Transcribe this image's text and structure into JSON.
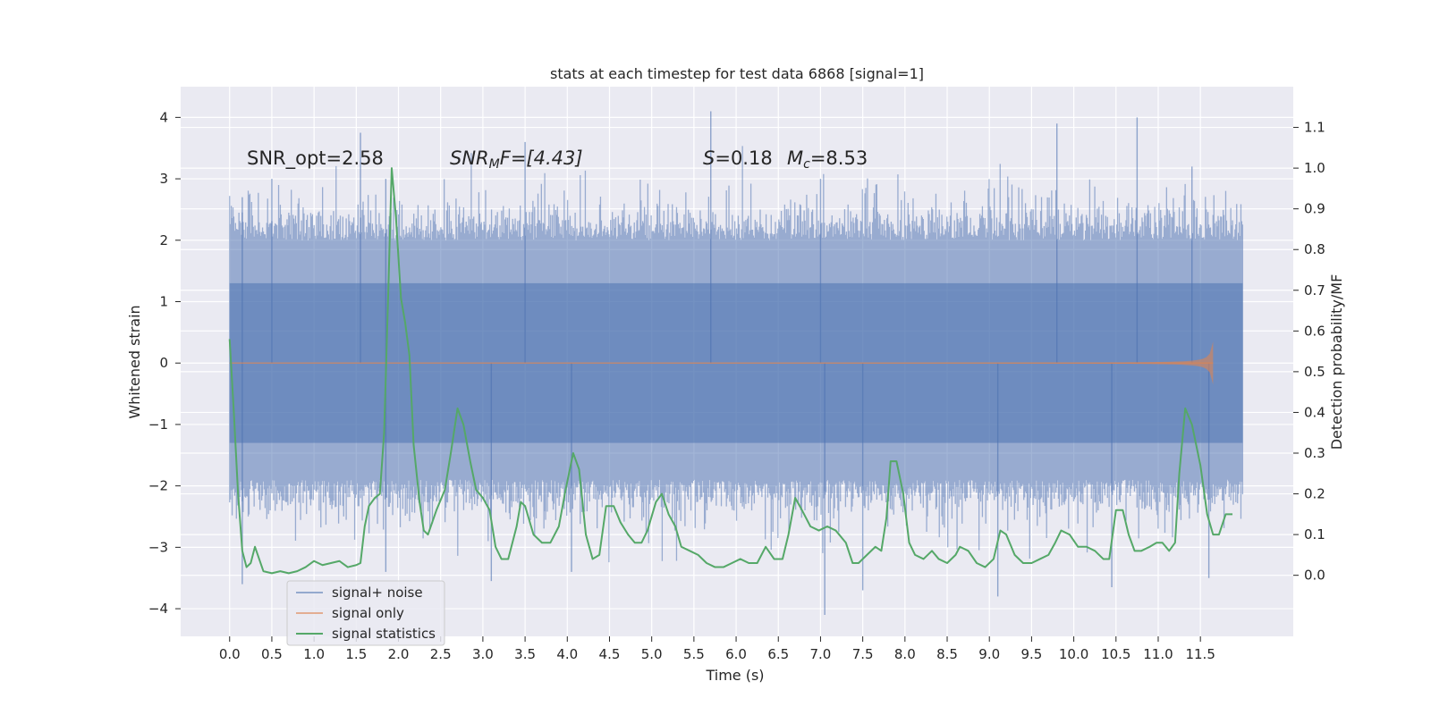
{
  "chart_data": {
    "type": "line",
    "title": "stats at each timestep for test data 6868 [signal=1]",
    "xlabel": "Time (s)",
    "ylabel_left": "Whitened strain",
    "ylabel_right": "Detection probability/MF",
    "xlim": [
      -0.58,
      12.6
    ],
    "ylim_left": [
      -4.45,
      4.5
    ],
    "ylim_right": [
      -0.15,
      1.2
    ],
    "x_ticks": [
      0.0,
      0.5,
      1.0,
      1.5,
      2.0,
      2.5,
      3.0,
      3.5,
      4.0,
      4.5,
      5.0,
      5.5,
      6.0,
      6.5,
      7.0,
      7.5,
      8.0,
      8.5,
      9.0,
      9.5,
      10.0,
      10.5,
      11.0,
      11.5
    ],
    "x_tick_labels": [
      "0.0",
      "0.5",
      "1.0",
      "1.5",
      "2.0",
      "2.5",
      "3.0",
      "3.5",
      "4.0",
      "4.5",
      "5.0",
      "5.5",
      "6.0",
      "6.5",
      "7.0",
      "7.5",
      "8.0",
      "8.5",
      "9.0",
      "9.5",
      "10.0",
      "10.5",
      "11.0",
      "11.5"
    ],
    "y_ticks_left": [
      4,
      3,
      2,
      1,
      0,
      -1,
      -2,
      -3,
      -4
    ],
    "y_tick_labels_left": [
      "4",
      "3",
      "2",
      "1",
      "0",
      "−1",
      "−2",
      "−3",
      "−4"
    ],
    "y_ticks_right": [
      1.1,
      1.0,
      0.9,
      0.8,
      0.7,
      0.6,
      0.5,
      0.4,
      0.3,
      0.2,
      0.1,
      0.0
    ],
    "y_tick_labels_right": [
      "1.1",
      "1.0",
      "0.9",
      "0.8",
      "0.7",
      "0.6",
      "0.5",
      "0.4",
      "0.3",
      "0.2",
      "0.1",
      "0.0"
    ],
    "annotations": {
      "snr_opt": "SNR_opt=2.58",
      "snr_mf_sym": "SNR",
      "snr_mf_sub": "M",
      "snr_mf_rest": "F=[4.43]",
      "s_sym": "S",
      "s_value": "=0.18",
      "mc_sym": "M",
      "mc_sub": "c",
      "mc_value": "=8.53"
    },
    "legend": {
      "placement": "lower-left",
      "entries": [
        "signal+ noise",
        "signal only",
        "signal statistics"
      ]
    },
    "series": [
      {
        "name": "signal+ noise",
        "color": "#4c72b0",
        "style": "dense noise band",
        "x_range": [
          0.0,
          12.0
        ],
        "band_core": [
          -1.9,
          2.0
        ],
        "extremes": [
          [
            0.15,
            2.7
          ],
          [
            0.5,
            3.0
          ],
          [
            1.55,
            3.75
          ],
          [
            1.85,
            3.0
          ],
          [
            3.5,
            3.6
          ],
          [
            5.7,
            4.1
          ],
          [
            7.0,
            3.0
          ],
          [
            9.8,
            3.9
          ],
          [
            10.75,
            4.0
          ],
          [
            11.4,
            3.2
          ],
          [
            0.15,
            -3.6
          ],
          [
            1.85,
            -3.4
          ],
          [
            3.1,
            -3.55
          ],
          [
            4.05,
            -3.4
          ],
          [
            7.05,
            -4.1
          ],
          [
            7.5,
            -3.7
          ],
          [
            9.1,
            -3.8
          ],
          [
            10.45,
            -3.65
          ],
          [
            11.6,
            -3.5
          ]
        ]
      },
      {
        "name": "signal only",
        "color": "#dd8452",
        "style": "chirp",
        "x_range": [
          0.0,
          11.65
        ],
        "peak_time": 11.65,
        "peak_amplitude": 0.35
      },
      {
        "name": "signal statistics",
        "color": "#55a868",
        "axis": "right",
        "points": [
          [
            0.0,
            0.58
          ],
          [
            0.05,
            0.4
          ],
          [
            0.1,
            0.2
          ],
          [
            0.15,
            0.06
          ],
          [
            0.2,
            0.02
          ],
          [
            0.25,
            0.03
          ],
          [
            0.3,
            0.07
          ],
          [
            0.35,
            0.04
          ],
          [
            0.4,
            0.01
          ],
          [
            0.5,
            0.005
          ],
          [
            0.6,
            0.01
          ],
          [
            0.7,
            0.005
          ],
          [
            0.8,
            0.01
          ],
          [
            0.9,
            0.02
          ],
          [
            1.0,
            0.035
          ],
          [
            1.1,
            0.025
          ],
          [
            1.2,
            0.03
          ],
          [
            1.3,
            0.035
          ],
          [
            1.4,
            0.02
          ],
          [
            1.5,
            0.025
          ],
          [
            1.55,
            0.03
          ],
          [
            1.6,
            0.12
          ],
          [
            1.65,
            0.17
          ],
          [
            1.72,
            0.19
          ],
          [
            1.78,
            0.2
          ],
          [
            1.83,
            0.35
          ],
          [
            1.88,
            0.7
          ],
          [
            1.92,
            1.0
          ],
          [
            1.97,
            0.88
          ],
          [
            2.03,
            0.68
          ],
          [
            2.08,
            0.62
          ],
          [
            2.13,
            0.54
          ],
          [
            2.18,
            0.32
          ],
          [
            2.25,
            0.18
          ],
          [
            2.3,
            0.11
          ],
          [
            2.35,
            0.1
          ],
          [
            2.45,
            0.16
          ],
          [
            2.55,
            0.21
          ],
          [
            2.62,
            0.3
          ],
          [
            2.7,
            0.41
          ],
          [
            2.77,
            0.37
          ],
          [
            2.85,
            0.28
          ],
          [
            2.92,
            0.21
          ],
          [
            3.0,
            0.19
          ],
          [
            3.08,
            0.16
          ],
          [
            3.15,
            0.07
          ],
          [
            3.22,
            0.04
          ],
          [
            3.3,
            0.04
          ],
          [
            3.4,
            0.12
          ],
          [
            3.45,
            0.18
          ],
          [
            3.5,
            0.17
          ],
          [
            3.6,
            0.1
          ],
          [
            3.7,
            0.08
          ],
          [
            3.8,
            0.08
          ],
          [
            3.9,
            0.12
          ],
          [
            3.98,
            0.21
          ],
          [
            4.07,
            0.3
          ],
          [
            4.14,
            0.26
          ],
          [
            4.22,
            0.1
          ],
          [
            4.3,
            0.04
          ],
          [
            4.38,
            0.05
          ],
          [
            4.46,
            0.17
          ],
          [
            4.55,
            0.17
          ],
          [
            4.63,
            0.13
          ],
          [
            4.72,
            0.1
          ],
          [
            4.8,
            0.08
          ],
          [
            4.88,
            0.08
          ],
          [
            4.95,
            0.11
          ],
          [
            5.05,
            0.18
          ],
          [
            5.12,
            0.2
          ],
          [
            5.2,
            0.15
          ],
          [
            5.28,
            0.12
          ],
          [
            5.35,
            0.07
          ],
          [
            5.45,
            0.06
          ],
          [
            5.55,
            0.05
          ],
          [
            5.65,
            0.03
          ],
          [
            5.75,
            0.02
          ],
          [
            5.85,
            0.02
          ],
          [
            5.95,
            0.03
          ],
          [
            6.05,
            0.04
          ],
          [
            6.15,
            0.03
          ],
          [
            6.25,
            0.03
          ],
          [
            6.35,
            0.07
          ],
          [
            6.45,
            0.04
          ],
          [
            6.55,
            0.04
          ],
          [
            6.62,
            0.1
          ],
          [
            6.7,
            0.19
          ],
          [
            6.78,
            0.16
          ],
          [
            6.88,
            0.12
          ],
          [
            6.98,
            0.11
          ],
          [
            7.08,
            0.12
          ],
          [
            7.18,
            0.11
          ],
          [
            7.3,
            0.08
          ],
          [
            7.38,
            0.03
          ],
          [
            7.45,
            0.03
          ],
          [
            7.55,
            0.05
          ],
          [
            7.65,
            0.07
          ],
          [
            7.72,
            0.06
          ],
          [
            7.78,
            0.14
          ],
          [
            7.83,
            0.28
          ],
          [
            7.9,
            0.28
          ],
          [
            7.98,
            0.2
          ],
          [
            8.05,
            0.08
          ],
          [
            8.12,
            0.05
          ],
          [
            8.22,
            0.04
          ],
          [
            8.32,
            0.06
          ],
          [
            8.4,
            0.04
          ],
          [
            8.5,
            0.03
          ],
          [
            8.6,
            0.05
          ],
          [
            8.65,
            0.07
          ],
          [
            8.75,
            0.06
          ],
          [
            8.85,
            0.03
          ],
          [
            8.95,
            0.02
          ],
          [
            9.05,
            0.04
          ],
          [
            9.13,
            0.11
          ],
          [
            9.2,
            0.1
          ],
          [
            9.3,
            0.05
          ],
          [
            9.4,
            0.03
          ],
          [
            9.5,
            0.03
          ],
          [
            9.6,
            0.04
          ],
          [
            9.7,
            0.05
          ],
          [
            9.78,
            0.08
          ],
          [
            9.85,
            0.11
          ],
          [
            9.95,
            0.1
          ],
          [
            10.05,
            0.07
          ],
          [
            10.15,
            0.07
          ],
          [
            10.25,
            0.06
          ],
          [
            10.35,
            0.04
          ],
          [
            10.42,
            0.04
          ],
          [
            10.5,
            0.16
          ],
          [
            10.58,
            0.16
          ],
          [
            10.65,
            0.1
          ],
          [
            10.72,
            0.06
          ],
          [
            10.8,
            0.06
          ],
          [
            10.9,
            0.07
          ],
          [
            10.98,
            0.08
          ],
          [
            11.05,
            0.08
          ],
          [
            11.13,
            0.06
          ],
          [
            11.2,
            0.08
          ],
          [
            11.25,
            0.25
          ],
          [
            11.32,
            0.41
          ],
          [
            11.4,
            0.37
          ],
          [
            11.5,
            0.27
          ],
          [
            11.58,
            0.15
          ],
          [
            11.65,
            0.1
          ],
          [
            11.72,
            0.1
          ],
          [
            11.8,
            0.15
          ],
          [
            11.88,
            0.15
          ]
        ]
      }
    ]
  }
}
